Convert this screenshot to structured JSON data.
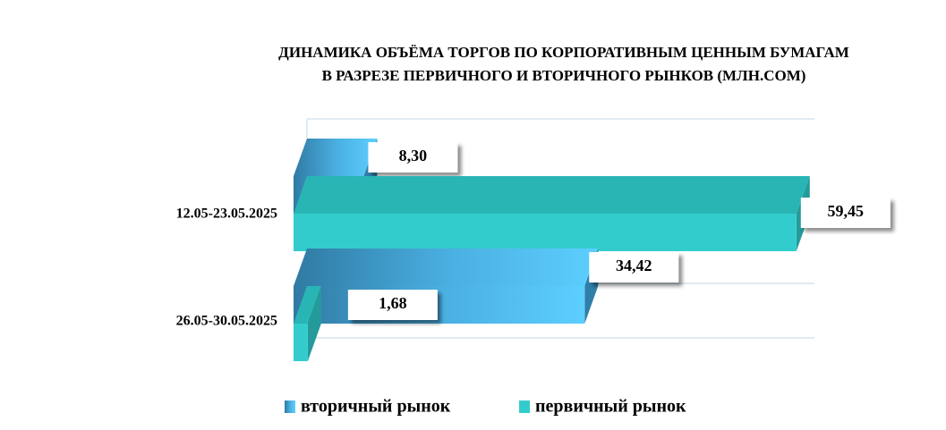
{
  "chart_data": {
    "type": "bar3d",
    "title": [
      "ДИНАМИКА ОБЪЁМА ТОРГОВ ПО КОРПОРАТИВНЫМ ЦЕННЫМ БУМАГАМ",
      "В РАЗРЕЗЕ ПЕРВИЧНОГО И ВТОРИЧНОГО РЫНКОВ  (МЛН.СОМ)"
    ],
    "categories": [
      "12.05-23.05.2025",
      "26.05-30.05.2025"
    ],
    "series": [
      {
        "name": "вторичный рынок",
        "color": "#4fb3e8",
        "values": [
          8.3,
          34.42
        ],
        "value_labels": [
          "8,30",
          "34,42"
        ]
      },
      {
        "name": "первичный рынок",
        "color": "#33cccc",
        "values": [
          59.45,
          1.68
        ],
        "value_labels": [
          "59,45",
          "1,68"
        ]
      }
    ]
  }
}
